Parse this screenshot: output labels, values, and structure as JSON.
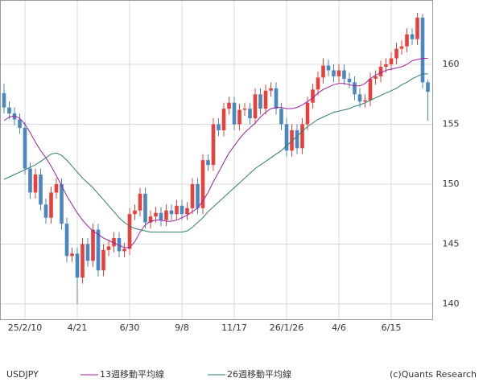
{
  "chart_data": {
    "type": "candlestick",
    "symbol": "USDJPY",
    "credit": "(c)Quants Research",
    "categories": [
      null,
      null,
      null,
      null,
      "25/2/10",
      null,
      null,
      null,
      null,
      null,
      null,
      null,
      null,
      null,
      "4/21",
      null,
      null,
      null,
      null,
      null,
      null,
      null,
      null,
      null,
      "6/30",
      null,
      null,
      null,
      null,
      null,
      null,
      null,
      null,
      null,
      "9/8",
      null,
      null,
      null,
      null,
      null,
      null,
      null,
      null,
      null,
      "11/17",
      null,
      null,
      null,
      null,
      null,
      null,
      null,
      null,
      null,
      "26/1/26",
      null,
      null,
      null,
      null,
      null,
      null,
      null,
      null,
      null,
      "4/6",
      null,
      null,
      null,
      null,
      null,
      null,
      null,
      null,
      null,
      "6/15",
      null,
      null,
      null,
      null,
      null,
      null,
      null
    ],
    "open": [
      157.6,
      156.4,
      155.9,
      155.4,
      154.7,
      151.3,
      149.3,
      150.8,
      148.3,
      147.2,
      149.3,
      150.0,
      146.7,
      144.0,
      144.2,
      142.2,
      145.0,
      143.6,
      146.2,
      142.8,
      144.5,
      144.8,
      145.5,
      144.4,
      144.6,
      147.5,
      147.8,
      149.2,
      146.8,
      147.3,
      147.6,
      147.0,
      147.8,
      147.5,
      148.2,
      147.5,
      148.0,
      150.0,
      148.0,
      152.0,
      151.6,
      155.0,
      154.5,
      156.3,
      156.8,
      155.0,
      156.2,
      156.3,
      155.5,
      157.5,
      156.3,
      157.8,
      158.0,
      156.3,
      155.0,
      152.8,
      154.5,
      153.0,
      155.0,
      156.8,
      157.9,
      158.9,
      159.9,
      159.5,
      159.0,
      159.5,
      158.8,
      158.5,
      157.5,
      156.9,
      157.0,
      158.8,
      159.0,
      159.8,
      160.0,
      160.5,
      161.3,
      161.5,
      162.5,
      162.1,
      163.9,
      158.5
    ],
    "high": [
      158.4,
      156.9,
      156.4,
      155.9,
      155.2,
      151.8,
      151.3,
      151.3,
      148.8,
      149.8,
      150.5,
      150.5,
      147.2,
      144.7,
      144.7,
      145.5,
      145.5,
      146.7,
      146.7,
      145.0,
      145.3,
      146.0,
      146.0,
      145.1,
      148.0,
      148.3,
      149.7,
      149.7,
      147.8,
      148.1,
      148.1,
      148.3,
      148.3,
      148.7,
      148.7,
      148.5,
      150.5,
      150.5,
      152.5,
      152.5,
      155.5,
      155.5,
      156.8,
      157.3,
      157.3,
      156.7,
      156.8,
      156.8,
      158.0,
      158.0,
      158.3,
      158.5,
      158.5,
      156.8,
      155.5,
      155.0,
      155.0,
      155.5,
      157.3,
      158.4,
      159.4,
      160.5,
      160.4,
      160.0,
      160.0,
      160.0,
      159.3,
      159.0,
      158.0,
      157.5,
      159.3,
      159.5,
      160.3,
      160.5,
      161.0,
      161.8,
      162.0,
      163.0,
      163.0,
      164.3,
      164.2,
      158.7
    ],
    "low": [
      155.9,
      155.4,
      154.9,
      154.2,
      150.8,
      148.8,
      148.8,
      147.8,
      146.7,
      146.7,
      148.8,
      146.2,
      143.5,
      143.5,
      140.0,
      141.7,
      143.1,
      143.1,
      142.3,
      142.3,
      144.0,
      144.3,
      143.9,
      143.9,
      144.1,
      147.0,
      147.3,
      146.3,
      146.3,
      146.8,
      146.5,
      146.5,
      147.0,
      147.0,
      147.0,
      147.0,
      147.5,
      147.5,
      147.5,
      151.1,
      151.1,
      154.0,
      154.0,
      155.8,
      154.5,
      154.5,
      155.7,
      155.0,
      155.0,
      155.8,
      155.8,
      157.3,
      155.8,
      154.5,
      152.3,
      152.3,
      152.5,
      152.5,
      154.5,
      156.3,
      157.4,
      158.4,
      159.0,
      158.5,
      158.5,
      158.3,
      158.0,
      157.0,
      156.4,
      156.4,
      156.5,
      158.3,
      158.5,
      159.3,
      159.5,
      160.0,
      160.8,
      161.0,
      161.6,
      161.6,
      158.0,
      155.3
    ],
    "close": [
      156.4,
      155.9,
      155.4,
      154.7,
      151.3,
      149.3,
      150.8,
      148.3,
      147.2,
      149.3,
      150.0,
      146.7,
      144.0,
      144.2,
      142.2,
      145.0,
      143.6,
      146.2,
      142.8,
      144.5,
      144.8,
      145.5,
      144.4,
      144.6,
      147.5,
      147.8,
      149.2,
      146.8,
      147.3,
      147.6,
      147.0,
      147.8,
      147.5,
      148.2,
      147.5,
      148.0,
      150.0,
      148.0,
      152.0,
      151.6,
      155.0,
      154.5,
      156.3,
      156.8,
      155.0,
      156.2,
      156.3,
      155.5,
      157.5,
      156.3,
      157.8,
      158.0,
      156.3,
      155.0,
      152.8,
      154.5,
      153.0,
      155.0,
      156.8,
      157.9,
      158.9,
      159.9,
      159.5,
      159.0,
      159.5,
      158.8,
      158.5,
      157.5,
      156.9,
      157.0,
      158.8,
      159.0,
      159.8,
      160.0,
      160.5,
      161.3,
      161.5,
      162.5,
      162.1,
      163.9,
      158.5,
      157.7
    ],
    "up_color": "#e8403a",
    "down_color": "#4a86c0",
    "series": [
      {
        "name": "13週移動平均線",
        "color": "#a020a0",
        "values": [
          155.3,
          155.6,
          155.7,
          155.5,
          155.0,
          154.3,
          153.5,
          152.8,
          152.2,
          151.5,
          150.7,
          149.9,
          149.0,
          148.3,
          147.6,
          147.0,
          146.5,
          146.1,
          145.8,
          145.5,
          145.3,
          145.1,
          144.9,
          144.7,
          144.7,
          145.2,
          146.0,
          146.6,
          146.9,
          147.0,
          147.0,
          146.9,
          146.9,
          147.0,
          147.2,
          147.4,
          147.7,
          148.0,
          148.6,
          149.3,
          150.2,
          151.0,
          151.8,
          152.6,
          153.2,
          153.8,
          154.3,
          154.7,
          155.1,
          155.6,
          156.0,
          156.3,
          156.4,
          156.4,
          156.3,
          156.3,
          156.4,
          156.6,
          156.9,
          157.2,
          157.6,
          157.9,
          158.1,
          158.3,
          158.4,
          158.4,
          158.3,
          158.2,
          158.2,
          158.4,
          158.8,
          159.1,
          159.3,
          159.5,
          159.6,
          159.7,
          159.8,
          160.0,
          160.3,
          160.4,
          160.5,
          160.5
        ]
      },
      {
        "name": "26週移動平均線",
        "color": "#2e7d6e",
        "values": [
          150.4,
          150.6,
          150.8,
          151.0,
          151.2,
          151.4,
          151.6,
          151.9,
          152.2,
          152.5,
          152.6,
          152.4,
          152.0,
          151.5,
          151.0,
          150.5,
          150.1,
          149.7,
          149.2,
          148.7,
          148.2,
          147.7,
          147.2,
          146.8,
          146.5,
          146.3,
          146.2,
          146.1,
          146.0,
          146.0,
          146.0,
          146.0,
          146.0,
          146.0,
          146.0,
          146.1,
          146.4,
          146.8,
          147.2,
          147.7,
          148.1,
          148.5,
          148.9,
          149.3,
          149.7,
          150.1,
          150.5,
          150.9,
          151.3,
          151.6,
          151.9,
          152.2,
          152.5,
          152.8,
          153.2,
          153.6,
          154.0,
          154.4,
          154.8,
          155.1,
          155.4,
          155.6,
          155.8,
          156.0,
          156.1,
          156.2,
          156.3,
          156.5,
          156.6,
          156.8,
          157.0,
          157.2,
          157.4,
          157.6,
          157.8,
          158.0,
          158.3,
          158.5,
          158.8,
          159.0,
          159.2,
          159.2
        ]
      }
    ],
    "ylim": [
      138.72,
      165.37
    ],
    "yticks": [
      140,
      145,
      150,
      155,
      160
    ],
    "grid": true
  }
}
